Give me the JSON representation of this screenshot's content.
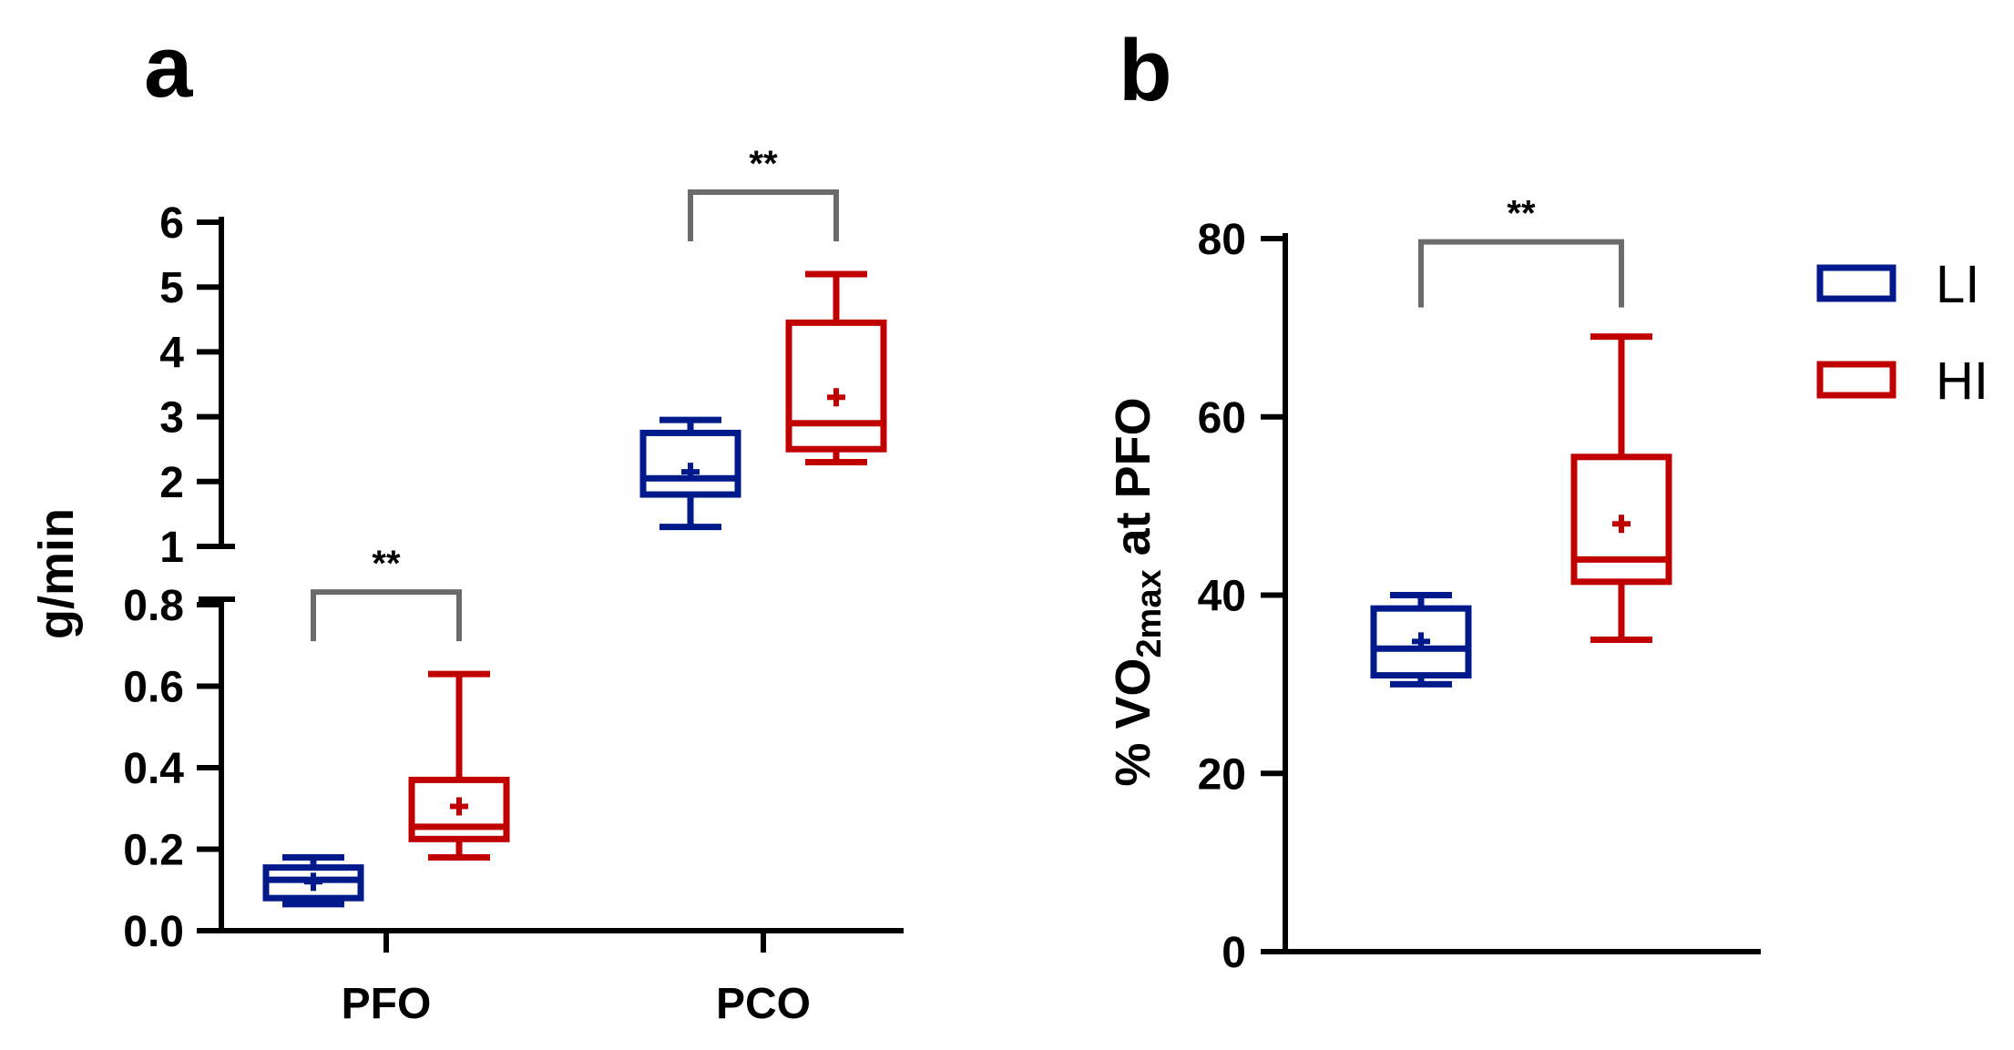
{
  "colors": {
    "li": "#001a8c",
    "hi": "#c00000",
    "axis": "#000000",
    "bracket": "#6b6b6b"
  },
  "legend": [
    {
      "key": "li",
      "label": "LI"
    },
    {
      "key": "hi",
      "label": "HI"
    }
  ],
  "chart_data": [
    {
      "panel_label": "a",
      "type": "box",
      "ylabel": "g/min",
      "categories": [
        "PFO",
        "PCO"
      ],
      "axis_lower": {
        "ylim": [
          0,
          0.8
        ],
        "ticks": [
          "0.0",
          "0.2",
          "0.4",
          "0.6",
          "0.8"
        ],
        "tick_values": [
          0,
          0.2,
          0.4,
          0.6,
          0.8
        ]
      },
      "axis_upper": {
        "ylim": [
          1,
          6
        ],
        "ticks": [
          "1",
          "2",
          "3",
          "4",
          "5",
          "6"
        ],
        "tick_values": [
          1,
          2,
          3,
          4,
          5,
          6
        ]
      },
      "series": [
        {
          "name": "LI",
          "category": "PFO",
          "min": 0.065,
          "q1": 0.08,
          "median": 0.125,
          "q3": 0.155,
          "max": 0.18,
          "mean": 0.12
        },
        {
          "name": "HI",
          "category": "PFO",
          "min": 0.18,
          "q1": 0.225,
          "median": 0.255,
          "q3": 0.37,
          "max": 0.63,
          "mean": 0.305
        },
        {
          "name": "LI",
          "category": "PCO",
          "min": 1.3,
          "q1": 1.8,
          "median": 2.05,
          "q3": 2.75,
          "max": 2.95,
          "mean": 2.15
        },
        {
          "name": "HI",
          "category": "PCO",
          "min": 2.3,
          "q1": 2.5,
          "median": 2.9,
          "q3": 4.45,
          "max": 5.2,
          "mean": 3.3
        }
      ],
      "significance": [
        {
          "category": "PFO",
          "label": "**"
        },
        {
          "category": "PCO",
          "label": "**"
        }
      ]
    },
    {
      "panel_label": "b",
      "type": "box",
      "ylabel_prefix": "% VO",
      "ylabel_sub": "2max",
      "ylabel_suffix": " at PFO",
      "ylim": [
        0,
        80
      ],
      "ticks": [
        "0",
        "20",
        "40",
        "60",
        "80"
      ],
      "tick_values": [
        0,
        20,
        40,
        60,
        80
      ],
      "series": [
        {
          "name": "LI",
          "min": 30,
          "q1": 31,
          "median": 34,
          "q3": 38.5,
          "max": 40,
          "mean": 34.8
        },
        {
          "name": "HI",
          "min": 35,
          "q1": 41.5,
          "median": 44,
          "q3": 55.5,
          "max": 69,
          "mean": 48
        }
      ],
      "significance": [
        {
          "label": "**"
        }
      ]
    }
  ]
}
